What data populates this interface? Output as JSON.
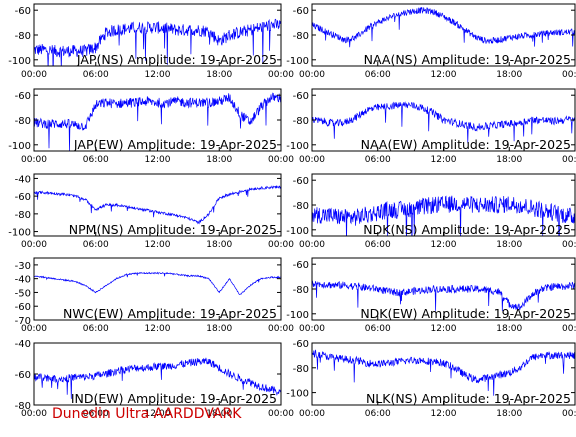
{
  "footer": "Dunedin Ultra AARDDVARK",
  "colors": {
    "trace": "#0000ff",
    "axis": "#000000",
    "footer": "#cc0000",
    "background": "#ffffff"
  },
  "chart_data": [
    {
      "type": "line",
      "title": "JAP(NS) Amplitude: 19-Apr-2025",
      "x": [
        "00:00",
        "01:00",
        "02:00",
        "03:00",
        "04:00",
        "05:00",
        "06:00",
        "07:00",
        "08:00",
        "09:00",
        "10:00",
        "11:00",
        "12:00",
        "13:00",
        "14:00",
        "15:00",
        "16:00",
        "17:00",
        "18:00",
        "19:00",
        "20:00",
        "21:00",
        "22:00",
        "23:00",
        "24:00"
      ],
      "x_ticks": [
        "00:00",
        "06:00",
        "12:00",
        "18:00",
        "00:00"
      ],
      "series": [
        {
          "values": [
            -92,
            -92,
            -93,
            -93,
            -93,
            -93,
            -90,
            -78,
            -76,
            -75,
            -74,
            -74,
            -74,
            -75,
            -76,
            -76,
            -76,
            -77,
            -85,
            -80,
            -78,
            -76,
            -74,
            -72,
            -72
          ],
          "spread": 10
        }
      ],
      "ylim": [
        -105,
        -55
      ],
      "yticks": [
        -60,
        -80,
        -100
      ],
      "grid": false
    },
    {
      "type": "line",
      "title": "NAA(NS) Amplitude: 19-Apr-2025",
      "x": [
        "00:00",
        "01:00",
        "02:00",
        "03:00",
        "04:00",
        "05:00",
        "06:00",
        "07:00",
        "08:00",
        "09:00",
        "10:00",
        "11:00",
        "12:00",
        "13:00",
        "14:00",
        "15:00",
        "16:00",
        "17:00",
        "18:00",
        "19:00",
        "20:00",
        "21:00",
        "22:00",
        "23:00",
        "24:00"
      ],
      "x_ticks": [
        "00:00",
        "06:00",
        "12:00",
        "18:00",
        "00:00"
      ],
      "series": [
        {
          "values": [
            -72,
            -76,
            -80,
            -84,
            -82,
            -75,
            -70,
            -66,
            -63,
            -61,
            -60,
            -61,
            -65,
            -70,
            -76,
            -82,
            -85,
            -84,
            -82,
            -81,
            -80,
            -79,
            -78,
            -78,
            -77
          ],
          "spread": 5
        }
      ],
      "ylim": [
        -105,
        -55
      ],
      "yticks": [
        -60,
        -80,
        -100
      ],
      "grid": false
    },
    {
      "type": "line",
      "title": "JAP(EW) Amplitude: 19-Apr-2025",
      "x": [
        "00:00",
        "01:00",
        "02:00",
        "03:00",
        "04:00",
        "05:00",
        "06:00",
        "07:00",
        "08:00",
        "09:00",
        "10:00",
        "11:00",
        "12:00",
        "13:00",
        "14:00",
        "15:00",
        "16:00",
        "17:00",
        "18:00",
        "19:00",
        "20:00",
        "21:00",
        "22:00",
        "23:00",
        "24:00"
      ],
      "x_ticks": [
        "00:00",
        "06:00",
        "12:00",
        "18:00",
        "00:00"
      ],
      "series": [
        {
          "values": [
            -82,
            -83,
            -83,
            -83,
            -84,
            -85,
            -68,
            -66,
            -67,
            -66,
            -66,
            -65,
            -66,
            -66,
            -65,
            -66,
            -66,
            -66,
            -65,
            -62,
            -75,
            -82,
            -70,
            -62,
            -62
          ],
          "spread": 8
        }
      ],
      "ylim": [
        -105,
        -55
      ],
      "yticks": [
        -60,
        -80,
        -100
      ],
      "grid": false
    },
    {
      "type": "line",
      "title": "NAA(EW) Amplitude: 19-Apr-2025",
      "x": [
        "00:00",
        "01:00",
        "02:00",
        "03:00",
        "04:00",
        "05:00",
        "06:00",
        "07:00",
        "08:00",
        "09:00",
        "10:00",
        "11:00",
        "12:00",
        "13:00",
        "14:00",
        "15:00",
        "16:00",
        "17:00",
        "18:00",
        "19:00",
        "20:00",
        "21:00",
        "22:00",
        "23:00",
        "24:00"
      ],
      "x_ticks": [
        "00:00",
        "06:00",
        "12:00",
        "18:00",
        "00:00"
      ],
      "series": [
        {
          "values": [
            -80,
            -81,
            -83,
            -82,
            -78,
            -72,
            -70,
            -69,
            -68,
            -68,
            -70,
            -74,
            -80,
            -82,
            -84,
            -86,
            -85,
            -84,
            -83,
            -82,
            -80,
            -80,
            -81,
            -80,
            -79
          ],
          "spread": 6
        }
      ],
      "ylim": [
        -105,
        -55
      ],
      "yticks": [
        -60,
        -80,
        -100
      ],
      "grid": false
    },
    {
      "type": "line",
      "title": "NPM(NS) Amplitude: 19-Apr-2025",
      "x": [
        "00:00",
        "01:00",
        "02:00",
        "03:00",
        "04:00",
        "05:00",
        "06:00",
        "07:00",
        "08:00",
        "09:00",
        "10:00",
        "11:00",
        "12:00",
        "13:00",
        "14:00",
        "15:00",
        "16:00",
        "17:00",
        "18:00",
        "19:00",
        "20:00",
        "21:00",
        "22:00",
        "23:00",
        "24:00"
      ],
      "x_ticks": [
        "00:00",
        "06:00",
        "12:00",
        "18:00",
        "00:00"
      ],
      "series": [
        {
          "values": [
            -56,
            -56,
            -57,
            -58,
            -60,
            -64,
            -75,
            -70,
            -70,
            -72,
            -74,
            -76,
            -78,
            -80,
            -82,
            -85,
            -90,
            -80,
            -62,
            -58,
            -55,
            -52,
            -51,
            -50,
            -50
          ],
          "spread": 3
        }
      ],
      "ylim": [
        -105,
        -35
      ],
      "yticks": [
        -40,
        -60,
        -80,
        -100
      ],
      "grid": false
    },
    {
      "type": "line",
      "title": "NDK(NS) Amplitude: 19-Apr-2025",
      "x": [
        "00:00",
        "01:00",
        "02:00",
        "03:00",
        "04:00",
        "05:00",
        "06:00",
        "07:00",
        "08:00",
        "09:00",
        "10:00",
        "11:00",
        "12:00",
        "13:00",
        "14:00",
        "15:00",
        "16:00",
        "17:00",
        "18:00",
        "19:00",
        "20:00",
        "21:00",
        "22:00",
        "23:00",
        "24:00"
      ],
      "x_ticks": [
        "00:00",
        "06:00",
        "12:00",
        "18:00",
        "00:00"
      ],
      "series": [
        {
          "values": [
            -88,
            -88,
            -89,
            -90,
            -90,
            -88,
            -86,
            -84,
            -84,
            -83,
            -82,
            -80,
            -80,
            -79,
            -79,
            -80,
            -80,
            -80,
            -79,
            -80,
            -82,
            -84,
            -86,
            -88,
            -90
          ],
          "spread": 14
        }
      ],
      "ylim": [
        -105,
        -55
      ],
      "yticks": [
        -60,
        -80,
        -100
      ],
      "grid": false
    },
    {
      "type": "line",
      "title": "NWC(EW) Amplitude: 19-Apr-2025",
      "x": [
        "00:00",
        "01:00",
        "02:00",
        "03:00",
        "04:00",
        "05:00",
        "06:00",
        "07:00",
        "08:00",
        "09:00",
        "10:00",
        "11:00",
        "12:00",
        "13:00",
        "14:00",
        "15:00",
        "16:00",
        "17:00",
        "18:00",
        "19:00",
        "20:00",
        "21:00",
        "22:00",
        "23:00",
        "24:00"
      ],
      "x_ticks": [
        "00:00",
        "06:00",
        "12:00",
        "18:00",
        "00:00"
      ],
      "series": [
        {
          "values": [
            -38,
            -39,
            -40,
            -41,
            -42,
            -45,
            -50,
            -45,
            -40,
            -37,
            -36,
            -36,
            -36,
            -36,
            -37,
            -38,
            -38,
            -40,
            -50,
            -40,
            -52,
            -45,
            -40,
            -39,
            -39
          ],
          "spread": 1
        }
      ],
      "ylim": [
        -70,
        -25
      ],
      "yticks": [
        -30,
        -40,
        -50,
        -60,
        -70
      ],
      "grid": false
    },
    {
      "type": "line",
      "title": "NDK(EW) Amplitude: 19-Apr-2025",
      "x": [
        "00:00",
        "01:00",
        "02:00",
        "03:00",
        "04:00",
        "05:00",
        "06:00",
        "07:00",
        "08:00",
        "09:00",
        "10:00",
        "11:00",
        "12:00",
        "13:00",
        "14:00",
        "15:00",
        "16:00",
        "17:00",
        "18:00",
        "19:00",
        "20:00",
        "21:00",
        "22:00",
        "23:00",
        "24:00"
      ],
      "x_ticks": [
        "00:00",
        "06:00",
        "12:00",
        "18:00",
        "00:00"
      ],
      "series": [
        {
          "values": [
            -76,
            -76,
            -77,
            -77,
            -78,
            -79,
            -80,
            -82,
            -83,
            -82,
            -81,
            -80,
            -80,
            -80,
            -80,
            -80,
            -81,
            -82,
            -92,
            -95,
            -85,
            -80,
            -78,
            -78,
            -77
          ],
          "spread": 6
        }
      ],
      "ylim": [
        -105,
        -55
      ],
      "yticks": [
        -60,
        -80,
        -100
      ],
      "grid": false
    },
    {
      "type": "line",
      "title": "IND(EW) Amplitude: 19-Apr-2025",
      "x": [
        "00:00",
        "01:00",
        "02:00",
        "03:00",
        "04:00",
        "05:00",
        "06:00",
        "07:00",
        "08:00",
        "09:00",
        "10:00",
        "11:00",
        "12:00",
        "13:00",
        "14:00",
        "15:00",
        "16:00",
        "17:00",
        "18:00",
        "19:00",
        "20:00",
        "21:00",
        "22:00",
        "23:00",
        "24:00"
      ],
      "x_ticks": [
        "00:00",
        "06:00",
        "12:00",
        "18:00",
        "00:00"
      ],
      "series": [
        {
          "values": [
            -62,
            -62,
            -63,
            -63,
            -62,
            -62,
            -61,
            -60,
            -58,
            -57,
            -56,
            -56,
            -55,
            -55,
            -54,
            -53,
            -52,
            -52,
            -56,
            -60,
            -63,
            -65,
            -68,
            -70,
            -72
          ],
          "spread": 5
        }
      ],
      "ylim": [
        -80,
        -40
      ],
      "yticks": [
        -40,
        -60,
        -80
      ],
      "grid": false
    },
    {
      "type": "line",
      "title": "NLK(NS) Amplitude: 19-Apr-2025",
      "x": [
        "00:00",
        "01:00",
        "02:00",
        "03:00",
        "04:00",
        "05:00",
        "06:00",
        "07:00",
        "08:00",
        "09:00",
        "10:00",
        "11:00",
        "12:00",
        "13:00",
        "14:00",
        "15:00",
        "16:00",
        "17:00",
        "18:00",
        "19:00",
        "20:00",
        "21:00",
        "22:00",
        "23:00",
        "24:00"
      ],
      "x_ticks": [
        "00:00",
        "06:00",
        "12:00",
        "18:00",
        "00:00"
      ],
      "series": [
        {
          "values": [
            -68,
            -70,
            -72,
            -73,
            -74,
            -76,
            -77,
            -76,
            -75,
            -74,
            -74,
            -75,
            -76,
            -80,
            -86,
            -90,
            -88,
            -86,
            -84,
            -80,
            -72,
            -70,
            -70,
            -70,
            -70
          ],
          "spread": 6
        }
      ],
      "ylim": [
        -110,
        -60
      ],
      "yticks": [
        -60,
        -80,
        -100
      ],
      "grid": false
    }
  ]
}
